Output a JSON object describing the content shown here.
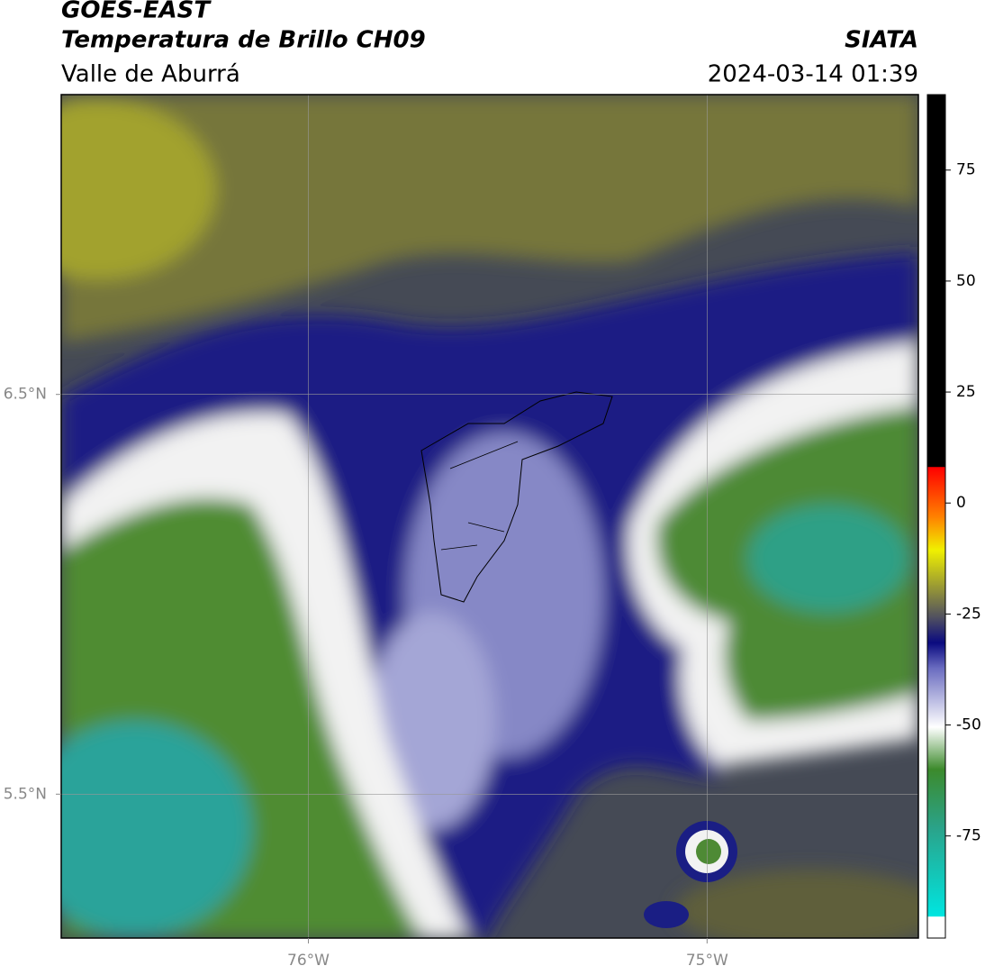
{
  "header": {
    "title": "GOES-EAST",
    "subtitle": "Temperatura de Brillo CH09",
    "region": "Valle de Aburrá",
    "source": "SIATA",
    "datetime": "2024-03-14 01:39"
  },
  "map": {
    "xlim": [
      -76.62,
      -74.47
    ],
    "ylim": [
      5.14,
      7.25
    ],
    "xticks": [
      {
        "value": -76,
        "label": "76°W"
      },
      {
        "value": -75,
        "label": "75°W"
      }
    ],
    "yticks": [
      {
        "value": 5.5,
        "label": "5.5°N"
      },
      {
        "value": 6.5,
        "label": "6.5°N"
      }
    ],
    "grid": true
  },
  "colorbar": {
    "lim": [
      -98,
      92
    ],
    "ticks": [
      75,
      50,
      25,
      0,
      -25,
      -50,
      -75
    ]
  }
}
